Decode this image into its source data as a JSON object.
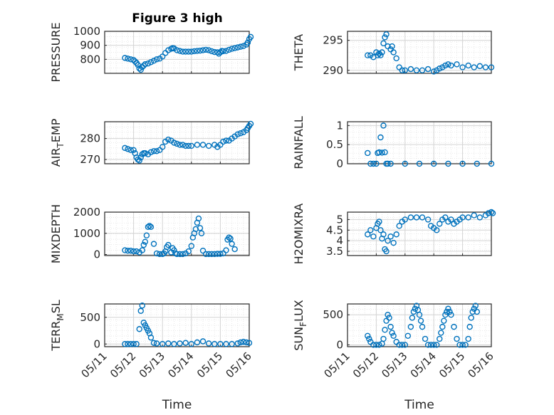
{
  "figure": {
    "title": "Figure 3 high"
  },
  "style": {
    "marker_color": "#0072BD",
    "grid_color": "#d4d4d4",
    "axis_color": "#262626"
  },
  "chart_data": [
    {
      "type": "scatter",
      "id": "pressure",
      "xlabel": "",
      "ylabel": "PRESSURE",
      "xlim": [
        0,
        5
      ],
      "ylim": [
        700,
        1000
      ],
      "yticks": [
        800,
        900,
        1000
      ],
      "x": [
        0.7,
        0.8,
        0.9,
        1.0,
        1.05,
        1.1,
        1.15,
        1.2,
        1.25,
        1.3,
        1.35,
        1.4,
        1.5,
        1.6,
        1.7,
        1.8,
        1.9,
        2.0,
        2.1,
        2.2,
        2.3,
        2.35,
        2.4,
        2.5,
        2.6,
        2.7,
        2.8,
        2.9,
        3.0,
        3.1,
        3.2,
        3.3,
        3.4,
        3.5,
        3.6,
        3.7,
        3.8,
        3.9,
        3.95,
        4.0,
        4.05,
        4.1,
        4.2,
        4.3,
        4.4,
        4.5,
        4.6,
        4.7,
        4.8,
        4.9,
        4.95,
        5.0,
        5.05
      ],
      "y": [
        810,
        805,
        800,
        795,
        785,
        775,
        760,
        735,
        725,
        745,
        755,
        765,
        770,
        780,
        790,
        800,
        805,
        820,
        845,
        865,
        875,
        880,
        878,
        865,
        860,
        855,
        855,
        855,
        855,
        858,
        860,
        862,
        865,
        868,
        865,
        858,
        852,
        850,
        840,
        850,
        860,
        858,
        860,
        868,
        875,
        880,
        885,
        890,
        895,
        905,
        920,
        945,
        960
      ]
    },
    {
      "type": "scatter",
      "id": "theta",
      "xlabel": "",
      "ylabel": "THETA",
      "xlim": [
        0,
        5
      ],
      "ylim": [
        289.5,
        296.5
      ],
      "yticks": [
        290,
        295
      ],
      "x": [
        0.7,
        0.8,
        0.9,
        1.0,
        1.05,
        1.1,
        1.15,
        1.2,
        1.25,
        1.3,
        1.35,
        1.4,
        1.5,
        1.55,
        1.6,
        1.7,
        1.8,
        1.9,
        2.0,
        2.2,
        2.4,
        2.6,
        2.8,
        3.0,
        3.1,
        3.2,
        3.3,
        3.4,
        3.5,
        3.6,
        3.8,
        4.0,
        4.2,
        4.4,
        4.6,
        4.8,
        5.0
      ],
      "y": [
        292.5,
        292.5,
        292.2,
        293.0,
        292.5,
        292.8,
        292.5,
        293.0,
        294.5,
        295.5,
        296.0,
        294.0,
        293.5,
        294.0,
        293.0,
        292.0,
        290.5,
        290.0,
        290.0,
        290.2,
        290.0,
        290.0,
        290.2,
        289.8,
        290.0,
        290.3,
        290.5,
        290.8,
        291.0,
        290.8,
        291.0,
        290.5,
        290.8,
        290.5,
        290.7,
        290.5,
        290.5
      ]
    },
    {
      "type": "scatter",
      "id": "air-temp",
      "xlabel": "",
      "ylabel": "AIR_TEMP",
      "xlim": [
        0,
        5
      ],
      "ylim": [
        268,
        288
      ],
      "yticks": [
        270,
        280
      ],
      "x": [
        0.7,
        0.8,
        0.9,
        1.0,
        1.05,
        1.1,
        1.15,
        1.2,
        1.25,
        1.3,
        1.35,
        1.4,
        1.5,
        1.6,
        1.7,
        1.8,
        1.9,
        2.0,
        2.1,
        2.2,
        2.3,
        2.4,
        2.5,
        2.6,
        2.7,
        2.8,
        2.9,
        3.0,
        3.2,
        3.4,
        3.6,
        3.8,
        3.9,
        4.0,
        4.1,
        4.2,
        4.3,
        4.4,
        4.5,
        4.6,
        4.7,
        4.8,
        4.9,
        4.95,
        5.0,
        5.05
      ],
      "y": [
        275.5,
        275,
        274.5,
        274.5,
        273,
        271,
        270,
        269.5,
        271,
        272.5,
        273,
        273,
        272.5,
        273.5,
        274,
        274,
        274.5,
        276,
        278.5,
        279.5,
        279,
        278,
        277.5,
        277,
        277,
        276.5,
        276.5,
        276.5,
        277,
        277,
        276.5,
        277,
        276,
        277,
        278.5,
        279,
        279,
        280,
        281,
        282,
        282.5,
        283,
        284,
        285,
        286,
        287
      ]
    },
    {
      "type": "scatter",
      "id": "rainfall",
      "xlabel": "",
      "ylabel": "RAINFALL",
      "xlim": [
        0,
        5
      ],
      "ylim": [
        0,
        1.1
      ],
      "yticks": [
        0,
        0.5,
        1
      ],
      "x": [
        0.7,
        0.8,
        0.9,
        1.0,
        1.05,
        1.1,
        1.15,
        1.2,
        1.25,
        1.3,
        1.35,
        1.4,
        1.5,
        2.0,
        2.5,
        3.0,
        3.5,
        4.0,
        4.5,
        5.0
      ],
      "y": [
        0.28,
        0,
        0,
        0,
        0.28,
        0.3,
        0.69,
        0.29,
        1.0,
        0.3,
        0,
        0,
        0,
        0,
        0,
        0,
        0,
        0,
        0,
        0
      ]
    },
    {
      "type": "scatter",
      "id": "mixdepth",
      "xlabel": "",
      "ylabel": "MIXDEPTH",
      "xlim": [
        0,
        5
      ],
      "ylim": [
        -50,
        2000
      ],
      "yticks": [
        0,
        1000,
        2000
      ],
      "x": [
        0.7,
        0.8,
        0.9,
        1.0,
        1.1,
        1.2,
        1.3,
        1.35,
        1.4,
        1.45,
        1.5,
        1.55,
        1.6,
        1.7,
        1.8,
        1.9,
        2.0,
        2.05,
        2.1,
        2.15,
        2.2,
        2.3,
        2.35,
        2.4,
        2.45,
        2.5,
        2.6,
        2.7,
        2.8,
        2.9,
        3.0,
        3.05,
        3.1,
        3.15,
        3.2,
        3.25,
        3.3,
        3.35,
        3.4,
        3.5,
        3.6,
        3.7,
        3.8,
        3.9,
        4.0,
        4.1,
        4.2,
        4.25,
        4.3,
        4.35,
        4.4,
        4.5
      ],
      "y": [
        200,
        180,
        180,
        150,
        150,
        100,
        200,
        450,
        600,
        900,
        1300,
        1350,
        1300,
        500,
        50,
        20,
        20,
        50,
        150,
        350,
        450,
        100,
        300,
        200,
        50,
        20,
        20,
        20,
        50,
        150,
        400,
        800,
        1000,
        1200,
        1500,
        1700,
        1250,
        1000,
        180,
        20,
        20,
        20,
        20,
        30,
        30,
        50,
        200,
        700,
        800,
        750,
        500,
        250
      ]
    },
    {
      "type": "scatter",
      "id": "h2omixra",
      "xlabel": "",
      "ylabel": "H2OMIXRA",
      "xlim": [
        0,
        5
      ],
      "ylim": [
        3.3,
        5.35
      ],
      "yticks": [
        3.5,
        4,
        4.5,
        5
      ],
      "x": [
        0.7,
        0.8,
        0.9,
        1.0,
        1.05,
        1.1,
        1.15,
        1.2,
        1.25,
        1.3,
        1.35,
        1.4,
        1.5,
        1.6,
        1.7,
        1.8,
        1.9,
        2.0,
        2.2,
        2.4,
        2.6,
        2.8,
        2.9,
        3.0,
        3.1,
        3.2,
        3.3,
        3.4,
        3.5,
        3.6,
        3.7,
        3.8,
        3.9,
        4.0,
        4.2,
        4.4,
        4.6,
        4.8,
        4.9,
        5.0,
        5.05
      ],
      "y": [
        4.3,
        4.5,
        4.2,
        4.6,
        4.8,
        4.9,
        4.5,
        4.1,
        4.3,
        3.6,
        3.5,
        4.0,
        4.2,
        3.9,
        4.3,
        4.7,
        4.9,
        5.0,
        5.1,
        5.1,
        5.1,
        5.0,
        4.7,
        4.6,
        4.5,
        4.8,
        5.0,
        5.1,
        4.9,
        5.0,
        4.8,
        4.9,
        5.0,
        5.1,
        5.1,
        5.2,
        5.1,
        5.2,
        5.3,
        5.35,
        5.3
      ]
    },
    {
      "type": "scatter",
      "id": "terr-msl",
      "xlabel": "Time",
      "ylabel": "TERR_MSL",
      "xlim": [
        0,
        5
      ],
      "ylim": [
        -50,
        750
      ],
      "yticks": [
        0,
        500
      ],
      "xticks": [
        "05/11",
        "05/12",
        "05/13",
        "05/14",
        "05/15",
        "05/16"
      ],
      "x": [
        0.7,
        0.8,
        0.9,
        1.0,
        1.1,
        1.2,
        1.25,
        1.3,
        1.35,
        1.4,
        1.45,
        1.5,
        1.55,
        1.6,
        1.7,
        1.8,
        2.0,
        2.2,
        2.4,
        2.6,
        2.8,
        3.0,
        3.2,
        3.4,
        3.6,
        3.8,
        4.0,
        4.2,
        4.4,
        4.6,
        4.7,
        4.8,
        4.9,
        5.0
      ],
      "y": [
        0,
        0,
        0,
        0,
        0,
        280,
        620,
        720,
        400,
        350,
        300,
        250,
        200,
        120,
        20,
        10,
        0,
        10,
        0,
        10,
        20,
        0,
        30,
        50,
        10,
        0,
        0,
        0,
        0,
        10,
        30,
        40,
        30,
        20
      ]
    },
    {
      "type": "scatter",
      "id": "sun-flux",
      "xlabel": "Time",
      "ylabel": "SUN_FLUX",
      "xlim": [
        0,
        5
      ],
      "ylim": [
        -30,
        680
      ],
      "yticks": [
        0,
        500
      ],
      "xticks": [
        "05/11",
        "05/12",
        "05/13",
        "05/14",
        "05/15",
        "05/16"
      ],
      "x": [
        0.7,
        0.75,
        0.8,
        0.9,
        1.0,
        1.1,
        1.2,
        1.25,
        1.3,
        1.35,
        1.4,
        1.45,
        1.5,
        1.55,
        1.6,
        1.7,
        1.8,
        1.9,
        2.0,
        2.1,
        2.2,
        2.25,
        2.3,
        2.35,
        2.4,
        2.45,
        2.5,
        2.55,
        2.6,
        2.7,
        2.8,
        2.9,
        3.0,
        3.1,
        3.2,
        3.25,
        3.3,
        3.35,
        3.4,
        3.45,
        3.5,
        3.55,
        3.6,
        3.7,
        3.8,
        3.9,
        4.0,
        4.1,
        4.2,
        4.25,
        4.3,
        4.35,
        4.4,
        4.45,
        4.5
      ],
      "y": [
        150,
        100,
        50,
        0,
        0,
        0,
        20,
        100,
        250,
        400,
        500,
        450,
        300,
        200,
        150,
        50,
        0,
        0,
        0,
        150,
        300,
        450,
        550,
        600,
        650,
        580,
        500,
        400,
        300,
        100,
        0,
        0,
        0,
        0,
        100,
        200,
        300,
        400,
        500,
        550,
        600,
        550,
        500,
        300,
        100,
        0,
        0,
        0,
        100,
        300,
        450,
        550,
        600,
        650,
        550
      ]
    }
  ]
}
